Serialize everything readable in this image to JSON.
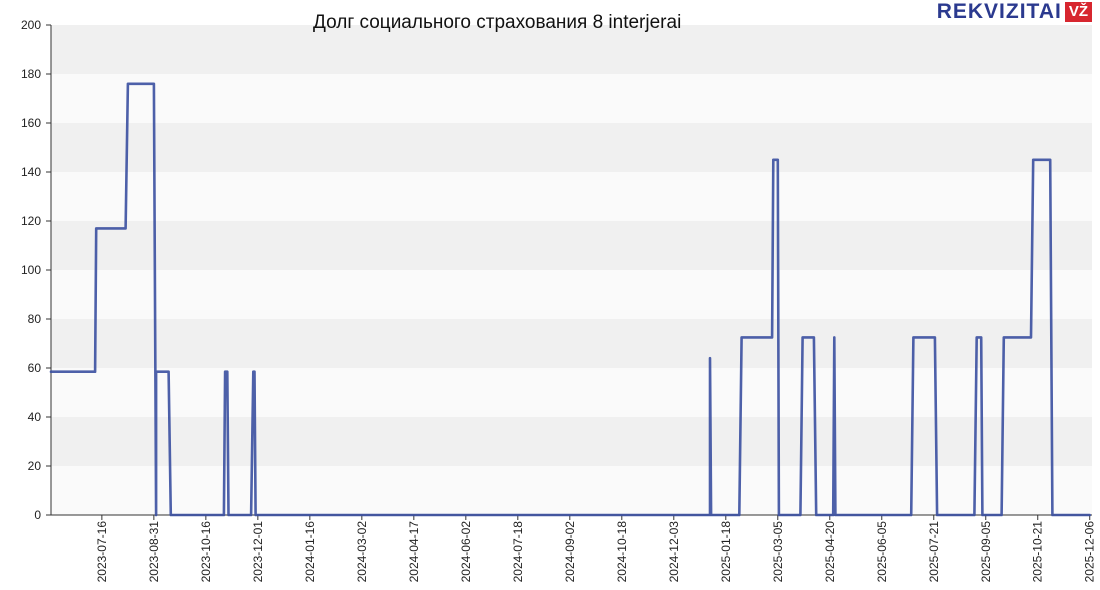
{
  "chart_data": {
    "type": "line",
    "title": "Долг социального страхования 8 interjerai",
    "xlabel": "",
    "ylabel": "",
    "ylim": [
      0,
      200
    ],
    "yticks": [
      0,
      20,
      40,
      60,
      80,
      100,
      120,
      140,
      160,
      180,
      200
    ],
    "x_range": [
      "2023-06-01",
      "2025-12-08"
    ],
    "xticks": [
      "2023-07-16",
      "2023-08-31",
      "2023-10-16",
      "2023-12-01",
      "2024-01-16",
      "2024-03-02",
      "2024-04-17",
      "2024-06-02",
      "2024-07-18",
      "2024-09-02",
      "2024-10-18",
      "2024-12-03",
      "2025-01-18",
      "2025-03-05",
      "2025-04-20",
      "2025-06-05",
      "2025-07-21",
      "2025-09-05",
      "2025-10-21",
      "2025-12-06"
    ],
    "grid": true,
    "legend": "none",
    "series": [
      {
        "color": "#3a4fa0",
        "points": [
          [
            "2023-06-01",
            58.5
          ],
          [
            "2023-07-10",
            58.5
          ],
          [
            "2023-07-11",
            117
          ],
          [
            "2023-08-06",
            117
          ],
          [
            "2023-08-08",
            176
          ],
          [
            "2023-08-31",
            176
          ],
          [
            "2023-09-02",
            0
          ],
          [
            "2023-09-02",
            58.5
          ],
          [
            "2023-09-13",
            58.5
          ],
          [
            "2023-09-15",
            0
          ],
          [
            "2023-11-01",
            0
          ],
          [
            "2023-11-02",
            58.5
          ],
          [
            "2023-11-04",
            58.5
          ],
          [
            "2023-11-05",
            0
          ],
          [
            "2023-11-25",
            0
          ],
          [
            "2023-11-27",
            58.5
          ],
          [
            "2023-11-28",
            58.5
          ],
          [
            "2023-11-29",
            0
          ],
          [
            "2025-01-04",
            0
          ],
          [
            "2025-01-04",
            64
          ],
          [
            "2025-01-05",
            0
          ],
          [
            "2025-01-30",
            0
          ],
          [
            "2025-02-01",
            72.5
          ],
          [
            "2025-02-28",
            72.5
          ],
          [
            "2025-03-01",
            145
          ],
          [
            "2025-03-05",
            145
          ],
          [
            "2025-03-06",
            0
          ],
          [
            "2025-03-25",
            0
          ],
          [
            "2025-03-27",
            72.5
          ],
          [
            "2025-04-06",
            72.5
          ],
          [
            "2025-04-08",
            0
          ],
          [
            "2025-04-23",
            0
          ],
          [
            "2025-04-24",
            72.5
          ],
          [
            "2025-04-25",
            0
          ],
          [
            "2025-07-01",
            0
          ],
          [
            "2025-07-03",
            72.5
          ],
          [
            "2025-07-22",
            72.5
          ],
          [
            "2025-07-24",
            0
          ],
          [
            "2025-08-26",
            0
          ],
          [
            "2025-08-28",
            72.5
          ],
          [
            "2025-09-01",
            72.5
          ],
          [
            "2025-09-02",
            0
          ],
          [
            "2025-09-19",
            0
          ],
          [
            "2025-09-21",
            72.5
          ],
          [
            "2025-10-15",
            72.5
          ],
          [
            "2025-10-17",
            145
          ],
          [
            "2025-11-01",
            145
          ],
          [
            "2025-11-03",
            0
          ],
          [
            "2025-12-06",
            0
          ]
        ]
      }
    ]
  },
  "branding": {
    "logo_text": "REKVIZITAI",
    "logo_badge": "VŽ"
  }
}
